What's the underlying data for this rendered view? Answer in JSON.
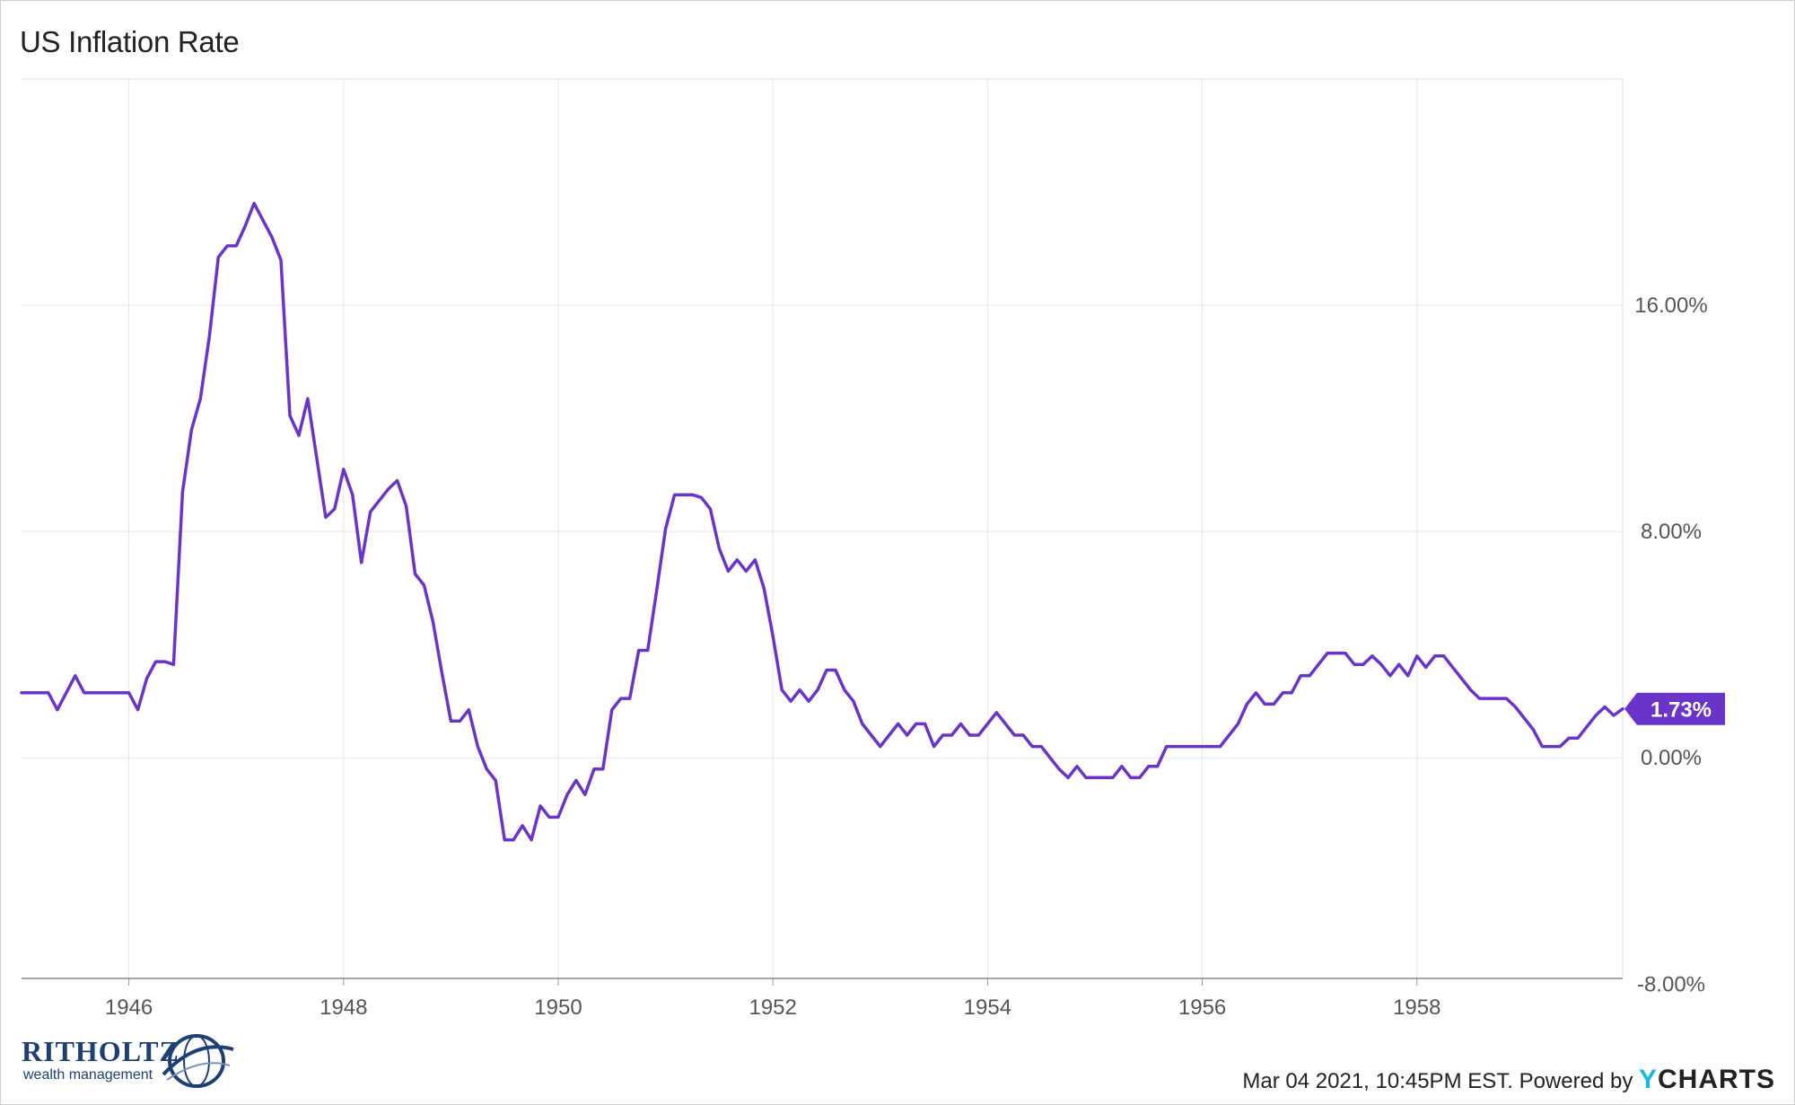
{
  "chart_data": {
    "type": "line",
    "title": "US Inflation Rate",
    "x_ticks": [
      "1946",
      "1948",
      "1950",
      "1952",
      "1954",
      "1956",
      "1958"
    ],
    "y_ticks": [
      "16.00%",
      "8.00%",
      "0.00%",
      "-8.00%"
    ],
    "y_tick_values": [
      16,
      8,
      0,
      -8
    ],
    "x_range": [
      "1945-01",
      "1959-12"
    ],
    "y_range": [
      -7.8,
      24
    ],
    "grid": true,
    "series": [
      {
        "color": "#6a34c9",
        "last_value_label": "1.73%",
        "points": [
          [
            "1945-01",
            2.3
          ],
          [
            "1945-02",
            2.3
          ],
          [
            "1945-03",
            2.3
          ],
          [
            "1945-04",
            2.3
          ],
          [
            "1945-05",
            1.7
          ],
          [
            "1945-06",
            2.3
          ],
          [
            "1945-07",
            2.9
          ],
          [
            "1945-08",
            2.3
          ],
          [
            "1945-09",
            2.3
          ],
          [
            "1945-10",
            2.3
          ],
          [
            "1945-11",
            2.3
          ],
          [
            "1945-12",
            2.3
          ],
          [
            "1946-01",
            2.3
          ],
          [
            "1946-02",
            1.7
          ],
          [
            "1946-03",
            2.8
          ],
          [
            "1946-04",
            3.4
          ],
          [
            "1946-05",
            3.4
          ],
          [
            "1946-06",
            3.3
          ],
          [
            "1946-07",
            9.4
          ],
          [
            "1946-08",
            11.6
          ],
          [
            "1946-09",
            12.7
          ],
          [
            "1946-10",
            14.9
          ],
          [
            "1946-11",
            17.7
          ],
          [
            "1946-12",
            18.1
          ],
          [
            "1947-01",
            18.1
          ],
          [
            "1947-02",
            18.8
          ],
          [
            "1947-03",
            19.6
          ],
          [
            "1947-04",
            19.0
          ],
          [
            "1947-05",
            18.4
          ],
          [
            "1947-06",
            17.6
          ],
          [
            "1947-07",
            12.1
          ],
          [
            "1947-08",
            11.4
          ],
          [
            "1947-09",
            12.7
          ],
          [
            "1947-10",
            10.6
          ],
          [
            "1947-11",
            8.5
          ],
          [
            "1947-12",
            8.8
          ],
          [
            "1948-01",
            10.2
          ],
          [
            "1948-02",
            9.3
          ],
          [
            "1948-03",
            6.9
          ],
          [
            "1948-04",
            8.7
          ],
          [
            "1948-05",
            9.1
          ],
          [
            "1948-06",
            9.5
          ],
          [
            "1948-07",
            9.8
          ],
          [
            "1948-08",
            8.9
          ],
          [
            "1948-09",
            6.5
          ],
          [
            "1948-10",
            6.1
          ],
          [
            "1948-11",
            4.8
          ],
          [
            "1948-12",
            3.0
          ],
          [
            "1949-01",
            1.3
          ],
          [
            "1949-02",
            1.3
          ],
          [
            "1949-03",
            1.7
          ],
          [
            "1949-04",
            0.4
          ],
          [
            "1949-05",
            -0.4
          ],
          [
            "1949-06",
            -0.8
          ],
          [
            "1949-07",
            -2.9
          ],
          [
            "1949-08",
            -2.9
          ],
          [
            "1949-09",
            -2.4
          ],
          [
            "1949-10",
            -2.9
          ],
          [
            "1949-11",
            -1.7
          ],
          [
            "1949-12",
            -2.1
          ],
          [
            "1950-01",
            -2.1
          ],
          [
            "1950-02",
            -1.3
          ],
          [
            "1950-03",
            -0.8
          ],
          [
            "1950-04",
            -1.3
          ],
          [
            "1950-05",
            -0.4
          ],
          [
            "1950-06",
            -0.4
          ],
          [
            "1950-07",
            1.7
          ],
          [
            "1950-08",
            2.1
          ],
          [
            "1950-09",
            2.1
          ],
          [
            "1950-10",
            3.8
          ],
          [
            "1950-11",
            3.8
          ],
          [
            "1950-12",
            5.9
          ],
          [
            "1951-01",
            8.1
          ],
          [
            "1951-02",
            9.3
          ],
          [
            "1951-03",
            9.3
          ],
          [
            "1951-04",
            9.3
          ],
          [
            "1951-05",
            9.2
          ],
          [
            "1951-06",
            8.8
          ],
          [
            "1951-07",
            7.4
          ],
          [
            "1951-08",
            6.6
          ],
          [
            "1951-09",
            7.0
          ],
          [
            "1951-10",
            6.6
          ],
          [
            "1951-11",
            7.0
          ],
          [
            "1951-12",
            6.0
          ],
          [
            "1952-01",
            4.3
          ],
          [
            "1952-02",
            2.4
          ],
          [
            "1952-03",
            2.0
          ],
          [
            "1952-04",
            2.4
          ],
          [
            "1952-05",
            2.0
          ],
          [
            "1952-06",
            2.4
          ],
          [
            "1952-07",
            3.1
          ],
          [
            "1952-08",
            3.1
          ],
          [
            "1952-09",
            2.4
          ],
          [
            "1952-10",
            2.0
          ],
          [
            "1952-11",
            1.2
          ],
          [
            "1952-12",
            0.8
          ],
          [
            "1953-01",
            0.4
          ],
          [
            "1953-02",
            0.8
          ],
          [
            "1953-03",
            1.2
          ],
          [
            "1953-04",
            0.8
          ],
          [
            "1953-05",
            1.2
          ],
          [
            "1953-06",
            1.2
          ],
          [
            "1953-07",
            0.4
          ],
          [
            "1953-08",
            0.8
          ],
          [
            "1953-09",
            0.8
          ],
          [
            "1953-10",
            1.2
          ],
          [
            "1953-11",
            0.8
          ],
          [
            "1953-12",
            0.8
          ],
          [
            "1954-01",
            1.2
          ],
          [
            "1954-02",
            1.6
          ],
          [
            "1954-03",
            1.2
          ],
          [
            "1954-04",
            0.8
          ],
          [
            "1954-05",
            0.8
          ],
          [
            "1954-06",
            0.4
          ],
          [
            "1954-07",
            0.4
          ],
          [
            "1954-08",
            0.0
          ],
          [
            "1954-09",
            -0.4
          ],
          [
            "1954-10",
            -0.7
          ],
          [
            "1954-11",
            -0.3
          ],
          [
            "1954-12",
            -0.7
          ],
          [
            "1955-01",
            -0.7
          ],
          [
            "1955-02",
            -0.7
          ],
          [
            "1955-03",
            -0.7
          ],
          [
            "1955-04",
            -0.3
          ],
          [
            "1955-05",
            -0.7
          ],
          [
            "1955-06",
            -0.7
          ],
          [
            "1955-07",
            -0.3
          ],
          [
            "1955-08",
            -0.3
          ],
          [
            "1955-09",
            0.4
          ],
          [
            "1955-10",
            0.4
          ],
          [
            "1955-11",
            0.4
          ],
          [
            "1955-12",
            0.4
          ],
          [
            "1956-01",
            0.4
          ],
          [
            "1956-02",
            0.4
          ],
          [
            "1956-03",
            0.4
          ],
          [
            "1956-04",
            0.8
          ],
          [
            "1956-05",
            1.2
          ],
          [
            "1956-06",
            1.9
          ],
          [
            "1956-07",
            2.3
          ],
          [
            "1956-08",
            1.9
          ],
          [
            "1956-09",
            1.9
          ],
          [
            "1956-10",
            2.3
          ],
          [
            "1956-11",
            2.3
          ],
          [
            "1956-12",
            2.9
          ],
          [
            "1957-01",
            2.9
          ],
          [
            "1957-02",
            3.3
          ],
          [
            "1957-03",
            3.7
          ],
          [
            "1957-04",
            3.7
          ],
          [
            "1957-05",
            3.7
          ],
          [
            "1957-06",
            3.3
          ],
          [
            "1957-07",
            3.3
          ],
          [
            "1957-08",
            3.6
          ],
          [
            "1957-09",
            3.3
          ],
          [
            "1957-10",
            2.9
          ],
          [
            "1957-11",
            3.3
          ],
          [
            "1957-12",
            2.9
          ],
          [
            "1958-01",
            3.6
          ],
          [
            "1958-02",
            3.2
          ],
          [
            "1958-03",
            3.6
          ],
          [
            "1958-04",
            3.6
          ],
          [
            "1958-05",
            3.2
          ],
          [
            "1958-06",
            2.8
          ],
          [
            "1958-07",
            2.4
          ],
          [
            "1958-08",
            2.1
          ],
          [
            "1958-09",
            2.1
          ],
          [
            "1958-10",
            2.1
          ],
          [
            "1958-11",
            2.1
          ],
          [
            "1958-12",
            1.8
          ],
          [
            "1959-01",
            1.4
          ],
          [
            "1959-02",
            1.0
          ],
          [
            "1959-03",
            0.4
          ],
          [
            "1959-04",
            0.4
          ],
          [
            "1959-05",
            0.4
          ],
          [
            "1959-06",
            0.7
          ],
          [
            "1959-07",
            0.7
          ],
          [
            "1959-08",
            1.1
          ],
          [
            "1959-09",
            1.5
          ],
          [
            "1959-10",
            1.8
          ],
          [
            "1959-11",
            1.5
          ],
          [
            "1959-12",
            1.73
          ]
        ]
      }
    ]
  },
  "branding": {
    "logo_main": "RITHOLTZ",
    "logo_sub": "wealth management"
  },
  "footer": {
    "timestamp_text": "Mar 04 2021, 10:45PM EST. Powered by",
    "brand_y": "Y",
    "brand_rest": "CHARTS"
  }
}
